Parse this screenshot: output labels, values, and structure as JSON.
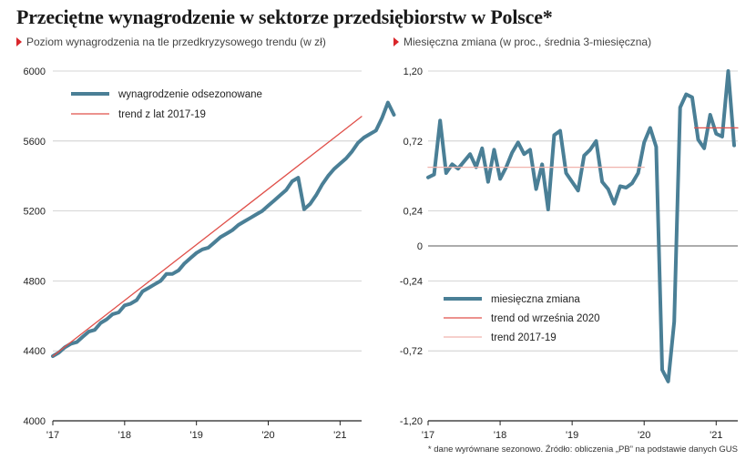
{
  "title": "Przeciętne wynagrodzenie w sektorze przedsiębiorstw w Polsce*",
  "footnote": "* dane wyrównane sezonowo. Źródło: obliczenia „PB” na podstawie danych GUS",
  "colors": {
    "series": "#4a7f96",
    "trend": "#e0504a",
    "trend_light": "#f0b3ad",
    "grid": "#c8c8c8",
    "axis": "#222222",
    "accent": "#d9262b"
  },
  "chart_data": [
    {
      "type": "line",
      "subtitle": "Poziom wynagrodzenia na tle przedkryzysowego trendu (w zł)",
      "xlabel": "",
      "ylabel": "",
      "xlim": [
        2017.0,
        2021.3
      ],
      "ylim": [
        4000,
        6000
      ],
      "yticks": [
        4000,
        4400,
        4800,
        5200,
        5600,
        6000
      ],
      "ytick_labels": [
        "4000",
        "4400",
        "4800",
        "5200",
        "5600",
        "6000"
      ],
      "xticks": [
        2017,
        2018,
        2019,
        2020,
        2021
      ],
      "xtick_labels": [
        "'17",
        "'18",
        "'19",
        "'20",
        "'21"
      ],
      "grid": true,
      "legend": "top-left",
      "series": [
        {
          "name": "wynagrodzenie odsezonowane",
          "style": "thick",
          "x0": 2017.0,
          "dx": 0.083333,
          "values": [
            4370,
            4390,
            4420,
            4440,
            4450,
            4480,
            4510,
            4520,
            4560,
            4580,
            4610,
            4620,
            4660,
            4670,
            4690,
            4740,
            4760,
            4780,
            4800,
            4840,
            4840,
            4860,
            4900,
            4930,
            4960,
            4980,
            4990,
            5020,
            5050,
            5070,
            5090,
            5120,
            5140,
            5160,
            5180,
            5200,
            5230,
            5260,
            5290,
            5320,
            5370,
            5390,
            5210,
            5240,
            5290,
            5350,
            5400,
            5440,
            5470,
            5500,
            5540,
            5590,
            5620,
            5640,
            5660,
            5730,
            5820,
            5750
          ]
        },
        {
          "name": "trend z lat 2017-19",
          "style": "thin",
          "x": [
            2017.0,
            2021.3
          ],
          "values": [
            4370,
            5740
          ]
        }
      ]
    },
    {
      "type": "line",
      "subtitle": "Miesięczna zmiana (w proc., średnia 3-miesięczna)",
      "xlabel": "",
      "ylabel": "",
      "xlim": [
        2017.0,
        2021.3
      ],
      "ylim": [
        -1.2,
        1.2
      ],
      "yticks": [
        -1.2,
        -0.72,
        -0.24,
        0,
        0.24,
        0.72,
        1.2
      ],
      "ytick_labels": [
        "-1,20",
        "-0,72",
        "-0,24",
        "0",
        "0,24",
        "0,72",
        "1,20"
      ],
      "xticks": [
        2017,
        2018,
        2019,
        2020,
        2021
      ],
      "xtick_labels": [
        "'17",
        "'18",
        "'19",
        "'20",
        "'21"
      ],
      "grid": true,
      "legend": "bottom-left",
      "series": [
        {
          "name": "miesięczna zmiana",
          "style": "thick",
          "x0": 2017.0,
          "dx": 0.083333,
          "values": [
            0.47,
            0.49,
            0.86,
            0.5,
            0.56,
            0.53,
            0.58,
            0.63,
            0.54,
            0.67,
            0.44,
            0.66,
            0.46,
            0.54,
            0.64,
            0.71,
            0.63,
            0.66,
            0.39,
            0.56,
            0.25,
            0.76,
            0.79,
            0.5,
            0.44,
            0.38,
            0.62,
            0.66,
            0.72,
            0.44,
            0.39,
            0.29,
            0.41,
            0.4,
            0.43,
            0.5,
            0.71,
            0.81,
            0.68,
            -0.85,
            -0.93,
            -0.52,
            0.95,
            1.04,
            1.02,
            0.73,
            0.67,
            0.9,
            0.77,
            0.75,
            1.2,
            0.69
          ]
        },
        {
          "name": "trend od września 2020",
          "style": "thin",
          "x": [
            2020.7,
            2021.3
          ],
          "values": [
            0.81,
            0.81
          ]
        },
        {
          "name": "trend 2017-19",
          "style": "thin-light",
          "x": [
            2017.0,
            2020.0
          ],
          "values": [
            0.54,
            0.54
          ]
        }
      ]
    }
  ]
}
